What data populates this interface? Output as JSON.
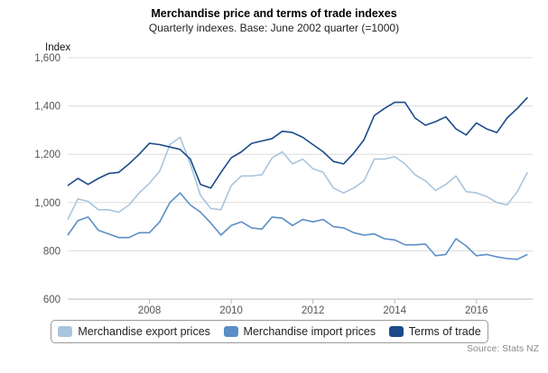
{
  "title": "Merchandise price and terms of trade indexes",
  "subtitle": "Quarterly indexes. Base: June 2002 quarter (=1000)",
  "source": "Source: Stats NZ",
  "chart_data": {
    "type": "line",
    "ylabel": "Index",
    "xlabel": "",
    "ylim": [
      600,
      1600
    ],
    "yticks": [
      600,
      800,
      1000,
      1200,
      1400,
      1600
    ],
    "ytick_labels": [
      "600",
      "800",
      "1,000",
      "1,200",
      "1,400",
      "1,600"
    ],
    "xlim": [
      2006.0,
      2017.375
    ],
    "xticks": [
      2008,
      2010,
      2012,
      2014,
      2016
    ],
    "xtick_labels": [
      "2008",
      "2010",
      "2012",
      "2014",
      "2016"
    ],
    "grid": "horizontal",
    "legend_position": "bottom",
    "x": [
      2006.0,
      2006.25,
      2006.5,
      2006.75,
      2007.0,
      2007.25,
      2007.5,
      2007.75,
      2008.0,
      2008.25,
      2008.5,
      2008.75,
      2009.0,
      2009.25,
      2009.5,
      2009.75,
      2010.0,
      2010.25,
      2010.5,
      2010.75,
      2011.0,
      2011.25,
      2011.5,
      2011.75,
      2012.0,
      2012.25,
      2012.5,
      2012.75,
      2013.0,
      2013.25,
      2013.5,
      2013.75,
      2014.0,
      2014.25,
      2014.5,
      2014.75,
      2015.0,
      2015.25,
      2015.5,
      2015.75,
      2016.0,
      2016.25,
      2016.5,
      2016.75,
      2017.0,
      2017.25
    ],
    "series": [
      {
        "name": "Merchandise export prices",
        "color": "#a9c4dd",
        "values": [
          930,
          1015,
          1005,
          970,
          970,
          960,
          990,
          1040,
          1080,
          1130,
          1240,
          1270,
          1160,
          1030,
          975,
          970,
          1070,
          1110,
          1110,
          1115,
          1185,
          1210,
          1160,
          1180,
          1140,
          1125,
          1060,
          1040,
          1060,
          1090,
          1180,
          1180,
          1190,
          1160,
          1115,
          1090,
          1050,
          1075,
          1110,
          1045,
          1040,
          1025,
          1000,
          990,
          1045,
          1125
        ]
      },
      {
        "name": "Merchandise import prices",
        "color": "#5b8ec6",
        "values": [
          865,
          925,
          940,
          885,
          870,
          855,
          855,
          875,
          875,
          920,
          1000,
          1040,
          990,
          960,
          915,
          865,
          905,
          920,
          895,
          890,
          940,
          935,
          905,
          930,
          920,
          930,
          900,
          895,
          875,
          865,
          870,
          850,
          845,
          825,
          825,
          828,
          780,
          785,
          850,
          820,
          780,
          785,
          775,
          768,
          765,
          785
        ]
      },
      {
        "name": "Terms of trade",
        "color": "#1b4b8a",
        "values": [
          1070,
          1100,
          1075,
          1100,
          1120,
          1125,
          1160,
          1200,
          1245,
          1240,
          1230,
          1220,
          1180,
          1075,
          1060,
          1125,
          1185,
          1210,
          1245,
          1255,
          1265,
          1295,
          1290,
          1270,
          1240,
          1210,
          1170,
          1160,
          1205,
          1260,
          1360,
          1390,
          1415,
          1415,
          1350,
          1320,
          1335,
          1355,
          1305,
          1280,
          1330,
          1305,
          1290,
          1350,
          1390,
          1435
        ]
      }
    ]
  }
}
